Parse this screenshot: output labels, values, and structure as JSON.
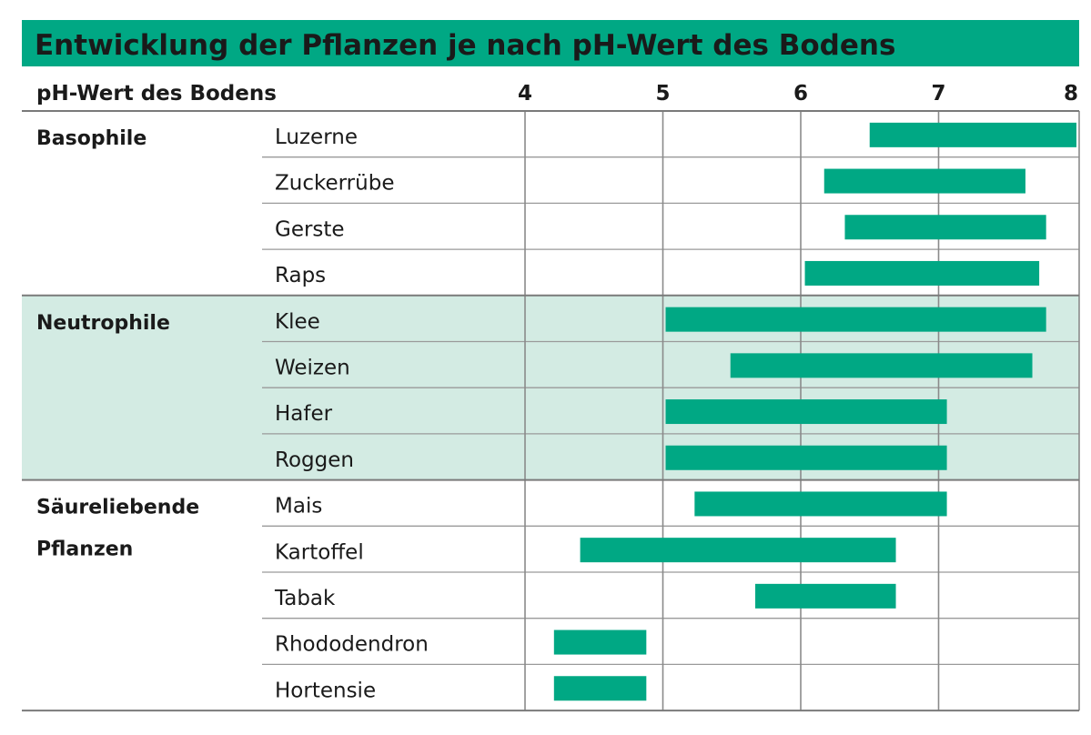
{
  "chart_data": {
    "type": "bar",
    "subtype": "range",
    "title": "Entwicklung der Pflanzen je nach pH-Wert des Bodens",
    "xlabel": "pH-Wert des Bodens",
    "xlim": [
      4,
      8
    ],
    "ticks": [
      "4",
      "5",
      "6",
      "7",
      "8"
    ],
    "groups": [
      {
        "name": "Basophile",
        "highlight": false,
        "rows": [
          {
            "label": "Luzerne",
            "min": 6.5,
            "max": 8.0
          },
          {
            "label": "Zuckerrübe",
            "min": 6.17,
            "max": 7.63
          },
          {
            "label": "Gerste",
            "min": 6.32,
            "max": 7.78
          },
          {
            "label": "Raps",
            "min": 6.03,
            "max": 7.73
          }
        ]
      },
      {
        "name": "Neutrophile",
        "highlight": true,
        "rows": [
          {
            "label": "Klee",
            "min": 5.02,
            "max": 7.78
          },
          {
            "label": "Weizen",
            "min": 5.49,
            "max": 7.68
          },
          {
            "label": "Hafer",
            "min": 5.02,
            "max": 7.06
          },
          {
            "label": "Roggen",
            "min": 5.02,
            "max": 7.06
          }
        ]
      },
      {
        "name": "Säureliebende Pflanzen",
        "name_lines": [
          "Säureliebende",
          "Pflanzen"
        ],
        "highlight": false,
        "rows": [
          {
            "label": "Mais",
            "min": 5.23,
            "max": 7.06
          },
          {
            "label": "Kartoffel",
            "min": 4.4,
            "max": 6.69
          },
          {
            "label": "Tabak",
            "min": 5.67,
            "max": 6.69
          },
          {
            "label": "Rhododendron",
            "min": 4.21,
            "max": 4.88
          },
          {
            "label": "Hortensie",
            "min": 4.21,
            "max": 4.88
          }
        ]
      }
    ]
  },
  "colors": {
    "accent": "#00a884",
    "highlight_band": "#d3ebe3",
    "grid": "#8a8a8a",
    "text": "#1a1a1a",
    "background": "#ffffff"
  }
}
